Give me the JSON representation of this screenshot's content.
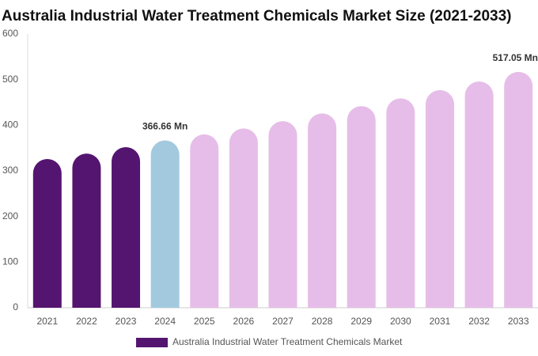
{
  "chart_data": {
    "type": "bar",
    "title": "Australia Industrial Water Treatment Chemicals Market Size (2021-2033)",
    "categories": [
      "2021",
      "2022",
      "2023",
      "2024",
      "2025",
      "2026",
      "2027",
      "2028",
      "2029",
      "2030",
      "2031",
      "2032",
      "2033"
    ],
    "series": [
      {
        "name": "Australia Industrial Water Treatment Chemicals Market",
        "color": "#541570",
        "values": [
          326,
          338,
          352,
          366.66,
          380,
          393,
          409,
          426,
          442,
          459,
          477,
          496,
          517.05
        ],
        "value_labels": [
          null,
          null,
          null,
          "366.66 Mn",
          null,
          null,
          null,
          null,
          null,
          null,
          null,
          null,
          "517.05 Mn"
        ]
      }
    ],
    "colors": [
      "#541570",
      "#541570",
      "#541570",
      "#a3c9de",
      "#e6bde8",
      "#e6bde8",
      "#e6bde8",
      "#e6bde8",
      "#e6bde8",
      "#e6bde8",
      "#e6bde8",
      "#e6bde8",
      "#e6bde8"
    ],
    "ylim": [
      0,
      600
    ],
    "yticks": [
      0,
      100,
      200,
      300,
      400,
      500,
      600
    ],
    "grid": false
  }
}
